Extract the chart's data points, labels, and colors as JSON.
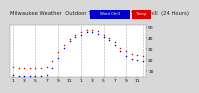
{
  "title": "Milwaukee Weather  Outdoor Temperature vs Wind Chill  (24 Hours)",
  "bg_color": "#d8d8d8",
  "plot_bg": "#ffffff",
  "grid_color": "#aaaaaa",
  "temp_color": "#dd0000",
  "windchill_color": "#0000cc",
  "x_hours": [
    1,
    2,
    3,
    4,
    5,
    6,
    7,
    8,
    9,
    10,
    11,
    12,
    13,
    14,
    15,
    16,
    17,
    18,
    19,
    20,
    21,
    22,
    23,
    24
  ],
  "temp_values": [
    14,
    13,
    13,
    13,
    13,
    13,
    14,
    19,
    27,
    34,
    39,
    43,
    45,
    47,
    47,
    46,
    43,
    40,
    36,
    31,
    28,
    26,
    25,
    24
  ],
  "windchill_values": [
    7,
    6,
    6,
    6,
    6,
    6,
    7,
    13,
    22,
    31,
    37,
    41,
    43,
    45,
    45,
    44,
    41,
    38,
    34,
    28,
    24,
    21,
    20,
    19
  ],
  "ylim_min": 5,
  "ylim_max": 52,
  "yticks": [
    10,
    20,
    30,
    40,
    50
  ],
  "ytick_labels": [
    "10",
    "20",
    "30",
    "40",
    "50"
  ],
  "xticks": [
    1,
    3,
    5,
    7,
    9,
    11,
    13,
    15,
    17,
    19,
    21,
    23
  ],
  "xtick_labels": [
    "1",
    "3",
    "5",
    "7",
    "9",
    "11",
    "1",
    "3",
    "5",
    "7",
    "9",
    "11"
  ],
  "vgrid_positions": [
    1,
    5,
    9,
    13,
    17,
    21,
    24
  ],
  "title_fontsize": 3.8,
  "tick_fontsize": 3.2,
  "dot_size": 1.2,
  "legend_blue_label": "Wind Chill",
  "legend_red_label": "Outdoor Temp",
  "legend_blue_color": "#0000cc",
  "legend_red_color": "#dd0000"
}
